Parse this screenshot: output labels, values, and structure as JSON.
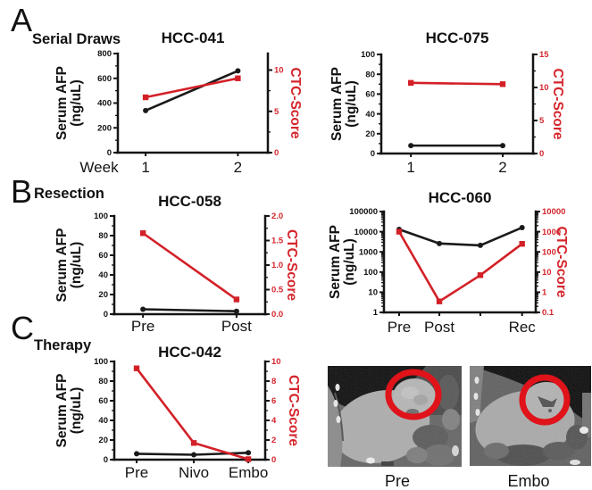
{
  "panels": [
    {
      "label": "A",
      "sublabel": "Serial Draws"
    },
    {
      "label": "B",
      "sublabel": "Resection"
    },
    {
      "label": "C",
      "sublabel": "Therapy"
    }
  ],
  "colors": {
    "afp_line": "#1a1a1a",
    "ctc_line": "#d32027",
    "ctc_text": "#d5262d",
    "ct_circle": "#e0121a"
  },
  "chart_data": [
    {
      "type": "line",
      "title": "HCC-041",
      "panel": "A",
      "ylabel_left_lines": [
        "Serum AFP",
        "(ng/uL)"
      ],
      "ylabel_right": "CTC-Score",
      "x_axis": {
        "prefix": "Week",
        "categories": [
          "1",
          "2"
        ],
        "fractions": [
          0.185,
          0.8
        ]
      },
      "left_axis": {
        "scale": "linear",
        "min": 0,
        "max": 800,
        "ticks": [
          0,
          200,
          400,
          600,
          800
        ],
        "tick_labels": [
          "0",
          "200",
          "400",
          "600",
          "800"
        ]
      },
      "right_axis": {
        "scale": "linear",
        "min": 0,
        "max": 12,
        "ticks": [
          0,
          5,
          10
        ],
        "tick_labels": [
          "0",
          "5",
          "10"
        ]
      },
      "series": [
        {
          "name": "Serum AFP",
          "axis": "left",
          "color_key": "afp_line",
          "marker": "circle",
          "values": [
            340,
            660
          ]
        },
        {
          "name": "CTC-Score",
          "axis": "right",
          "color_key": "ctc_line",
          "marker": "square",
          "values": [
            6.7,
            9
          ]
        }
      ]
    },
    {
      "type": "line",
      "title": "HCC-075",
      "panel": "A",
      "ylabel_left_lines": [
        "Serum AFP",
        "(ng/uL)"
      ],
      "ylabel_right": "CTC-Score",
      "x_axis": {
        "prefix": "",
        "categories": [
          "1",
          "2"
        ],
        "fractions": [
          0.195,
          0.8
        ]
      },
      "left_axis": {
        "scale": "linear",
        "min": 0,
        "max": 100,
        "ticks": [
          0,
          20,
          40,
          60,
          80,
          100
        ],
        "tick_labels": [
          "0",
          "20",
          "40",
          "60",
          "80",
          "100"
        ]
      },
      "right_axis": {
        "scale": "linear",
        "min": 0,
        "max": 15,
        "ticks": [
          0,
          5,
          10,
          15
        ],
        "tick_labels": [
          "0",
          "5",
          "10",
          "15"
        ]
      },
      "series": [
        {
          "name": "Serum AFP",
          "axis": "left",
          "color_key": "afp_line",
          "marker": "circle",
          "values": [
            8,
            8
          ]
        },
        {
          "name": "CTC-Score",
          "axis": "right",
          "color_key": "ctc_line",
          "marker": "square",
          "values": [
            10.7,
            10.5
          ]
        }
      ]
    },
    {
      "type": "line",
      "title": "HCC-058",
      "panel": "B",
      "ylabel_left_lines": [
        "Serum AFP",
        "(ng/uL)"
      ],
      "ylabel_right": "CTC-Score",
      "x_axis": {
        "prefix": "",
        "categories": [
          "Pre",
          "Post"
        ],
        "fractions": [
          0.19,
          0.81
        ]
      },
      "left_axis": {
        "scale": "linear",
        "min": 0,
        "max": 100,
        "ticks": [
          0,
          20,
          40,
          60,
          80,
          100
        ],
        "tick_labels": [
          "0",
          "20",
          "40",
          "60",
          "80",
          "100"
        ]
      },
      "right_axis": {
        "scale": "linear",
        "min": 0,
        "max": 2,
        "ticks": [
          0,
          0.5,
          1,
          1.5,
          2
        ],
        "tick_labels": [
          "0.0",
          "0.5",
          "1.0",
          "1.5",
          "2.0"
        ]
      },
      "series": [
        {
          "name": "Serum AFP",
          "axis": "left",
          "color_key": "afp_line",
          "marker": "circle",
          "values": [
            5,
            3
          ]
        },
        {
          "name": "CTC-Score",
          "axis": "right",
          "color_key": "ctc_line",
          "marker": "square",
          "values": [
            1.65,
            0.3
          ]
        }
      ]
    },
    {
      "type": "line",
      "title": "HCC-060",
      "panel": "B",
      "ylabel_left_lines": [
        "Serum AFP",
        "(ng/uL)"
      ],
      "ylabel_right": "CTC-Score",
      "x_axis": {
        "prefix": "",
        "categories": [
          "Pre",
          "Post",
          "",
          "Rec"
        ],
        "fractions": [
          0.1,
          0.365,
          0.635,
          0.91
        ]
      },
      "left_axis": {
        "scale": "log",
        "min": 1,
        "max": 100000,
        "ticks": [
          1,
          10,
          100,
          1000,
          10000,
          100000
        ],
        "tick_labels": [
          "1",
          "10",
          "100",
          "1000",
          "10000",
          "100000"
        ]
      },
      "right_axis": {
        "scale": "log",
        "min": 0.1,
        "max": 10000,
        "ticks": [
          0.1,
          1,
          10,
          100,
          1000,
          10000
        ],
        "tick_labels": [
          "0.1",
          "1",
          "10",
          "100",
          "1000",
          "10000"
        ]
      },
      "series": [
        {
          "name": "Serum AFP",
          "axis": "left",
          "color_key": "afp_line",
          "marker": "circle",
          "values": [
            13000,
            2600,
            2100,
            16000
          ]
        },
        {
          "name": "CTC-Score",
          "axis": "right",
          "color_key": "ctc_line",
          "marker": "square",
          "values": [
            1000,
            0.35,
            7,
            250
          ]
        }
      ]
    },
    {
      "type": "line",
      "title": "HCC-042",
      "panel": "C",
      "ylabel_left_lines": [
        "Serum AFP",
        "(ng/uL)"
      ],
      "ylabel_right": "CTC-Score",
      "x_axis": {
        "prefix": "",
        "categories": [
          "Pre",
          "Nivo",
          "Embo"
        ],
        "fractions": [
          0.148,
          0.527,
          0.888
        ]
      },
      "left_axis": {
        "scale": "linear",
        "min": 0,
        "max": 100,
        "ticks": [
          0,
          20,
          40,
          60,
          80,
          100
        ],
        "tick_labels": [
          "0",
          "20",
          "40",
          "60",
          "80",
          "100"
        ]
      },
      "right_axis": {
        "scale": "linear",
        "min": 0,
        "max": 10,
        "ticks": [
          0,
          2,
          4,
          6,
          8,
          10
        ],
        "tick_labels": [
          "0",
          "2",
          "4",
          "6",
          "8",
          "10"
        ]
      },
      "series": [
        {
          "name": "Serum AFP",
          "axis": "left",
          "color_key": "afp_line",
          "marker": "circle",
          "values": [
            6,
            5,
            7
          ]
        },
        {
          "name": "CTC-Score",
          "axis": "right",
          "color_key": "ctc_line",
          "marker": "square",
          "values": [
            9.3,
            1.7,
            0.05
          ]
        }
      ]
    }
  ],
  "ct_images": [
    {
      "label": "Pre"
    },
    {
      "label": "Embo"
    }
  ]
}
